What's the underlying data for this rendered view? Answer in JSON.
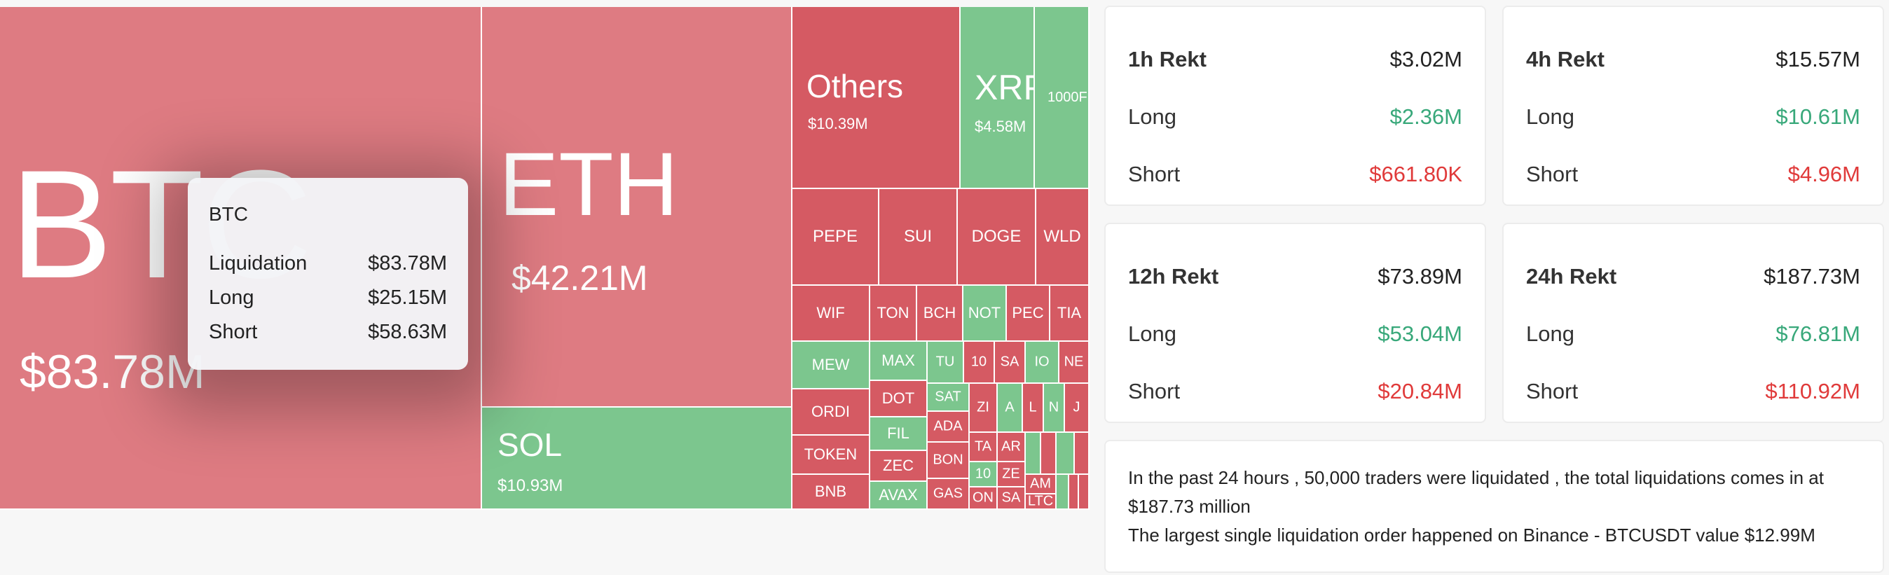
{
  "treemap": {
    "tiles": [
      {
        "id": "btc",
        "symbol": "BTC",
        "value": "$83.78M"
      },
      {
        "id": "eth",
        "symbol": "ETH",
        "value": "$42.21M"
      },
      {
        "id": "sol",
        "symbol": "SOL",
        "value": "$10.93M"
      },
      {
        "id": "others",
        "symbol": "Others",
        "value": "$10.39M"
      },
      {
        "id": "xrp",
        "symbol": "XRP",
        "value": "$4.58M"
      },
      {
        "id": "1000",
        "symbol": "1000F"
      },
      {
        "id": "pepe",
        "symbol": "PEPE"
      },
      {
        "id": "sui",
        "symbol": "SUI"
      },
      {
        "id": "doge",
        "symbol": "DOGE"
      },
      {
        "id": "wld",
        "symbol": "WLD"
      },
      {
        "id": "wif",
        "symbol": "WIF"
      },
      {
        "id": "ton",
        "symbol": "TON"
      },
      {
        "id": "bch",
        "symbol": "BCH"
      },
      {
        "id": "not",
        "symbol": "NOT"
      },
      {
        "id": "pec",
        "symbol": "PEC"
      },
      {
        "id": "tia",
        "symbol": "TIA"
      },
      {
        "id": "mew",
        "symbol": "MEW"
      },
      {
        "id": "max",
        "symbol": "MAX"
      },
      {
        "id": "tu",
        "symbol": "TU"
      },
      {
        "id": "s10",
        "symbol": "10"
      },
      {
        "id": "sa",
        "symbol": "SA"
      },
      {
        "id": "io",
        "symbol": "IO"
      },
      {
        "id": "ne",
        "symbol": "NE"
      },
      {
        "id": "ordi",
        "symbol": "ORDI"
      },
      {
        "id": "dot",
        "symbol": "DOT"
      },
      {
        "id": "sat",
        "symbol": "SAT"
      },
      {
        "id": "fil",
        "symbol": "FIL"
      },
      {
        "id": "ada",
        "symbol": "ADA"
      },
      {
        "id": "token",
        "symbol": "TOKEN"
      },
      {
        "id": "zec",
        "symbol": "ZEC"
      },
      {
        "id": "bon",
        "symbol": "BON"
      },
      {
        "id": "bnb",
        "symbol": "BNB"
      },
      {
        "id": "avax",
        "symbol": "AVAX"
      },
      {
        "id": "gas",
        "symbol": "GAS"
      },
      {
        "id": "zi",
        "symbol": "ZI"
      },
      {
        "id": "a1",
        "symbol": "A"
      },
      {
        "id": "l1",
        "symbol": "L"
      },
      {
        "id": "n1",
        "symbol": "N"
      },
      {
        "id": "j1",
        "symbol": "J"
      },
      {
        "id": "ta",
        "symbol": "TA"
      },
      {
        "id": "ar",
        "symbol": "AR"
      },
      {
        "id": "t10b",
        "symbol": "10"
      },
      {
        "id": "ze",
        "symbol": "ZE"
      },
      {
        "id": "am",
        "symbol": "AM"
      },
      {
        "id": "on",
        "symbol": "ON"
      },
      {
        "id": "sa2",
        "symbol": "SA"
      },
      {
        "id": "ltc",
        "symbol": "LTC"
      },
      {
        "id": "x1",
        "symbol": ""
      },
      {
        "id": "x2",
        "symbol": ""
      },
      {
        "id": "x3",
        "symbol": ""
      },
      {
        "id": "x4",
        "symbol": ""
      },
      {
        "id": "x5",
        "symbol": ""
      },
      {
        "id": "x6",
        "symbol": ""
      },
      {
        "id": "x7",
        "symbol": ""
      }
    ]
  },
  "tooltip": {
    "title": "BTC",
    "rows": [
      {
        "label": "Liquidation",
        "value": "$83.78M"
      },
      {
        "label": "Long",
        "value": "$25.15M"
      },
      {
        "label": "Short",
        "value": "$58.63M"
      }
    ]
  },
  "cards": [
    {
      "title": "1h Rekt",
      "total": "$3.02M",
      "long_label": "Long",
      "long": "$2.36M",
      "short_label": "Short",
      "short": "$661.80K"
    },
    {
      "title": "4h Rekt",
      "total": "$15.57M",
      "long_label": "Long",
      "long": "$10.61M",
      "short_label": "Short",
      "short": "$4.96M"
    },
    {
      "title": "12h Rekt",
      "total": "$73.89M",
      "long_label": "Long",
      "long": "$53.04M",
      "short_label": "Short",
      "short": "$20.84M"
    },
    {
      "title": "24h Rekt",
      "total": "$187.73M",
      "long_label": "Long",
      "long": "$76.81M",
      "short_label": "Short",
      "short": "$110.92M"
    }
  ],
  "summary": {
    "line1": "In the past 24 hours , 50,000 traders were liquidated , the total liquidations comes in at $187.73 million",
    "line2": "The largest single liquidation order happened on Binance - BTCUSDT value $12.99M"
  },
  "colors": {
    "long": "#38a87a",
    "short": "#e03a3a",
    "tile_red": "#d55a63",
    "tile_green": "#7cc68e"
  }
}
